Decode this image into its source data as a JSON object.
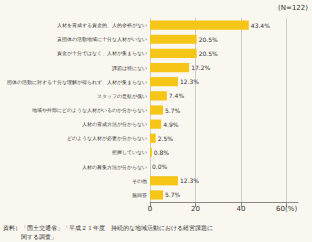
{
  "chart_data": {
    "type": "bar",
    "orientation": "horizontal",
    "categories": [
      "人材を育成する資金的、人的余裕がない",
      "貴団体の活動地域に十分な人材がいない",
      "資金が十分ではなく、人材が集まらない",
      "課題は特にない",
      "団体の活動に対する十分な理解が得られず、人材が集まらない",
      "スタッフの意欲が低い",
      "地域や外部にどのような人材がいるのか分からない",
      "人材の育成方法が分からない",
      "どのような人材が必要か分からない",
      "把握していない",
      "人材の募集方法が分からない",
      "その他",
      "無回答"
    ],
    "values": [
      43.4,
      20.5,
      20.5,
      17.2,
      12.3,
      7.4,
      5.7,
      4.9,
      2.5,
      0.8,
      0.0,
      12.3,
      5.7
    ],
    "value_labels": [
      "43.4%",
      "20.5%",
      "20.5%",
      "17.2%",
      "12.3%",
      "7.4%",
      "5.7%",
      "4.9%",
      "2.5%",
      "0.8%",
      "0.0%",
      "12.3%",
      "5.7%"
    ],
    "color": "#F5C518",
    "xlim": [
      0,
      65
    ],
    "xticks": [
      0,
      20,
      40,
      {
        "value": 60,
        "label": "60(%)"
      }
    ],
    "grid": true,
    "data_labels": true,
    "annotations": [
      "(N=122)",
      "資料）「国土交通省」「平成２１年度　持続的な地域活動における経営課題に",
      "　　　関する調査」"
    ]
  }
}
